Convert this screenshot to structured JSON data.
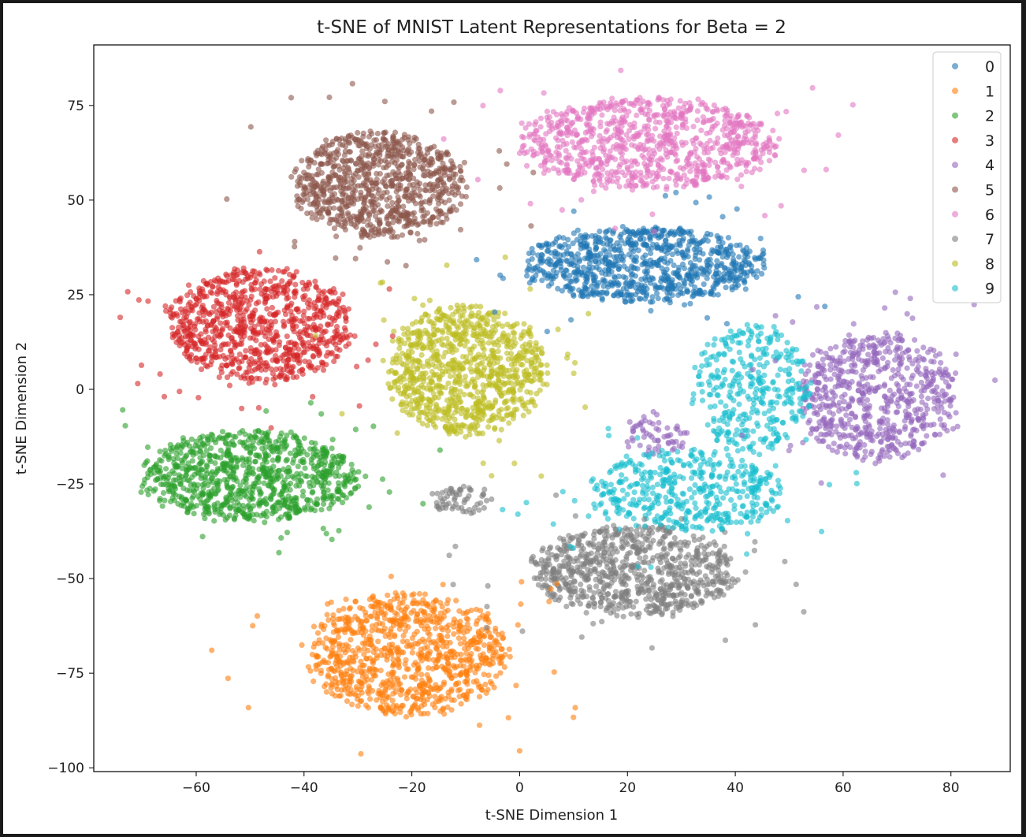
{
  "chart_data": {
    "type": "scatter",
    "title": "t-SNE of MNIST Latent Representations for Beta = 2",
    "xlabel": "t-SNE Dimension 1",
    "ylabel": "t-SNE Dimension 2",
    "xlim": [
      -79,
      91
    ],
    "ylim": [
      -101,
      91
    ],
    "xticks": [
      -60,
      -40,
      -20,
      0,
      20,
      40,
      60,
      80
    ],
    "yticks": [
      -100,
      -75,
      -50,
      -25,
      0,
      25,
      50,
      75
    ],
    "xtick_labels": [
      "−60",
      "−40",
      "−20",
      "0",
      "20",
      "40",
      "60",
      "80"
    ],
    "ytick_labels": [
      "−100",
      "−75",
      "−50",
      "−25",
      "0",
      "25",
      "50",
      "75"
    ],
    "grid": false,
    "legend_position": "top-right",
    "marker_alpha": 0.6,
    "series": [
      {
        "name": "0",
        "color": "#1f77b4",
        "clusters": [
          {
            "cx": 23,
            "cy": 33,
            "rx": 22,
            "ry": 10,
            "n": 850
          }
        ]
      },
      {
        "name": "1",
        "color": "#ff7f0e",
        "clusters": [
          {
            "cx": -21,
            "cy": -70,
            "rx": 19,
            "ry": 16,
            "n": 900
          }
        ]
      },
      {
        "name": "2",
        "color": "#2ca02c",
        "clusters": [
          {
            "cx": -50,
            "cy": -23,
            "rx": 20,
            "ry": 12,
            "n": 900
          }
        ]
      },
      {
        "name": "3",
        "color": "#d62728",
        "clusters": [
          {
            "cx": -48,
            "cy": 17,
            "rx": 17,
            "ry": 15,
            "n": 850
          }
        ]
      },
      {
        "name": "4",
        "color": "#9467bd",
        "clusters": [
          {
            "cx": 66,
            "cy": -2,
            "rx": 15,
            "ry": 17,
            "n": 650
          },
          {
            "cx": 25,
            "cy": -12,
            "rx": 6,
            "ry": 6,
            "n": 60
          }
        ]
      },
      {
        "name": "5",
        "color": "#8c564b",
        "clusters": [
          {
            "cx": -26,
            "cy": 54,
            "rx": 16,
            "ry": 14,
            "n": 850
          }
        ]
      },
      {
        "name": "6",
        "color": "#e377c2",
        "clusters": [
          {
            "cx": 24,
            "cy": 65,
            "rx": 24,
            "ry": 12,
            "n": 850
          }
        ]
      },
      {
        "name": "7",
        "color": "#7f7f7f",
        "clusters": [
          {
            "cx": 21,
            "cy": -48,
            "rx": 19,
            "ry": 12,
            "n": 800
          },
          {
            "cx": -11,
            "cy": -29,
            "rx": 6,
            "ry": 4,
            "n": 60
          }
        ]
      },
      {
        "name": "8",
        "color": "#bcbd22",
        "clusters": [
          {
            "cx": -10,
            "cy": 5,
            "rx": 15,
            "ry": 17,
            "n": 900
          }
        ]
      },
      {
        "name": "9",
        "color": "#17becf",
        "clusters": [
          {
            "cx": 31,
            "cy": -27,
            "rx": 18,
            "ry": 11,
            "n": 450
          },
          {
            "cx": 43,
            "cy": 0,
            "rx": 11,
            "ry": 17,
            "n": 350
          }
        ]
      }
    ]
  }
}
